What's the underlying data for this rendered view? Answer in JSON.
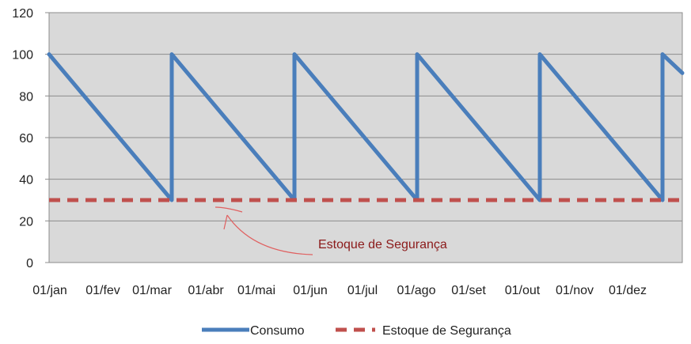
{
  "chart_data": {
    "type": "line",
    "title": "",
    "xlabel": "",
    "ylabel": "",
    "ylim": [
      0,
      120
    ],
    "y_ticks": [
      0,
      20,
      40,
      60,
      80,
      100,
      120
    ],
    "x_ticks": [
      "01/jan",
      "01/fev",
      "01/mar",
      "01/abr",
      "01/mai",
      "01/jun",
      "01/jul",
      "01/ago",
      "01/set",
      "01/out",
      "01/nov",
      "01/dez"
    ],
    "grid": "horizontal",
    "background": "#d9d9d9",
    "legend_position": "bottom",
    "series": [
      {
        "name": "Consumo",
        "color": "#4a7ebb",
        "style": "solid",
        "points": [
          [
            "01/jan",
            100
          ],
          [
            "01/mar",
            30
          ],
          [
            "01/mar",
            100
          ],
          [
            "01/mai",
            30
          ],
          [
            "01/mai",
            100
          ],
          [
            "01/jul",
            30
          ],
          [
            "01/jul",
            100
          ],
          [
            "01/set",
            30
          ],
          [
            "01/set",
            100
          ],
          [
            "01/nov",
            30
          ],
          [
            "01/nov",
            100
          ],
          [
            "end",
            91
          ]
        ]
      },
      {
        "name": "Estoque de Segurança",
        "color": "#c0504d",
        "style": "dashed",
        "points": [
          [
            "01/jan",
            30
          ],
          [
            "end",
            30
          ]
        ]
      }
    ],
    "annotation": {
      "text": "Estoque de Segurança",
      "color": "#8b1a1a",
      "arrow_color": "#e06060"
    }
  }
}
